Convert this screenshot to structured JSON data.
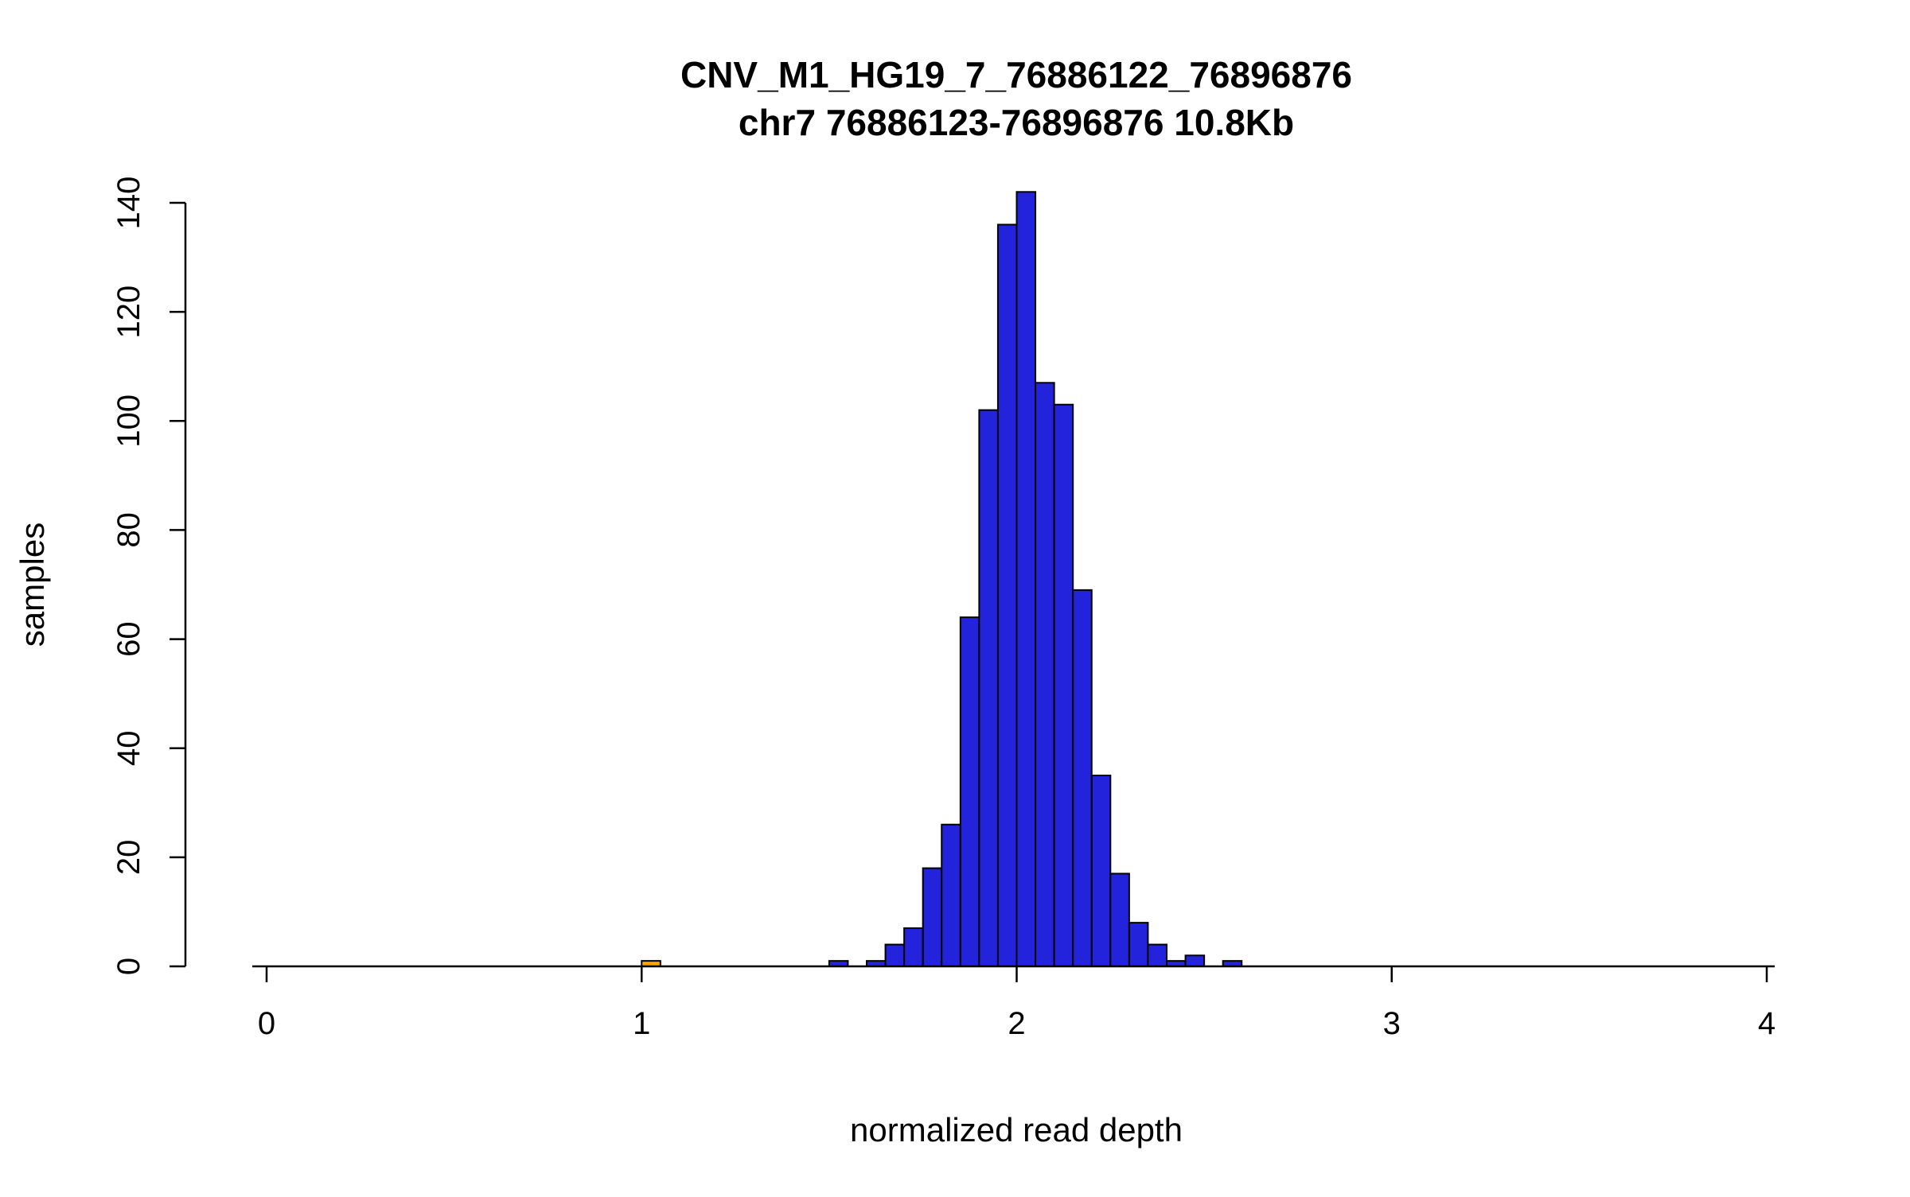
{
  "chart_data": {
    "type": "bar",
    "title": "CNV_M1_HG19_7_76886122_76896876",
    "subtitle": "chr7 76886123-76896876 10.8Kb",
    "xlabel": "normalized read depth",
    "ylabel": "samples",
    "xlim": [
      0,
      4
    ],
    "ylim": [
      0,
      140
    ],
    "x_ticks": [
      0,
      1,
      2,
      3,
      4
    ],
    "y_ticks": [
      0,
      20,
      40,
      60,
      80,
      100,
      120,
      140
    ],
    "bin_width": 0.05,
    "bar_color": "#2323DB",
    "bar_border_color": "#000000",
    "highlight_color": "#FFA500",
    "grid": false,
    "legend": "none",
    "bars": [
      {
        "x": 1.0,
        "count": 1,
        "color": "#FFA500"
      },
      {
        "x": 1.5,
        "count": 1
      },
      {
        "x": 1.6,
        "count": 1
      },
      {
        "x": 1.65,
        "count": 4
      },
      {
        "x": 1.7,
        "count": 7
      },
      {
        "x": 1.75,
        "count": 18
      },
      {
        "x": 1.8,
        "count": 26
      },
      {
        "x": 1.85,
        "count": 64
      },
      {
        "x": 1.9,
        "count": 102
      },
      {
        "x": 1.95,
        "count": 136
      },
      {
        "x": 2.0,
        "count": 142
      },
      {
        "x": 2.05,
        "count": 107
      },
      {
        "x": 2.1,
        "count": 103
      },
      {
        "x": 2.15,
        "count": 69
      },
      {
        "x": 2.2,
        "count": 35
      },
      {
        "x": 2.25,
        "count": 17
      },
      {
        "x": 2.3,
        "count": 8
      },
      {
        "x": 2.35,
        "count": 4
      },
      {
        "x": 2.4,
        "count": 1
      },
      {
        "x": 2.45,
        "count": 2
      },
      {
        "x": 2.55,
        "count": 1
      }
    ]
  }
}
